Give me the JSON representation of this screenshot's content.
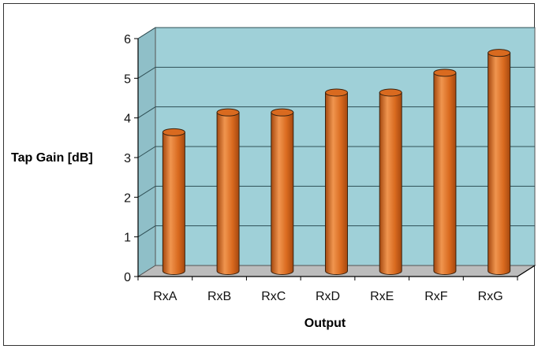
{
  "chart_data": {
    "type": "bar",
    "title": "",
    "xlabel": "Output",
    "ylabel": "Tap Gain [dB]",
    "categories": [
      "RxA",
      "RxB",
      "RxC",
      "RxD",
      "RxE",
      "RxF",
      "RxG"
    ],
    "values": [
      3.5,
      4.0,
      4.0,
      4.5,
      4.5,
      5.0,
      5.5
    ],
    "ylim": [
      0,
      6
    ],
    "yticks": [
      "0",
      "1",
      "2",
      "3",
      "4",
      "5",
      "6"
    ],
    "grid": true,
    "legend": "none",
    "colors": {
      "bar": "#d96a1f",
      "bar_dark": "#a5480f",
      "bar_light": "#f0954f",
      "plot_back": "#9fd0d8",
      "plot_floor": "#bcbcbc",
      "plot_side": "#8fbfc8"
    }
  }
}
